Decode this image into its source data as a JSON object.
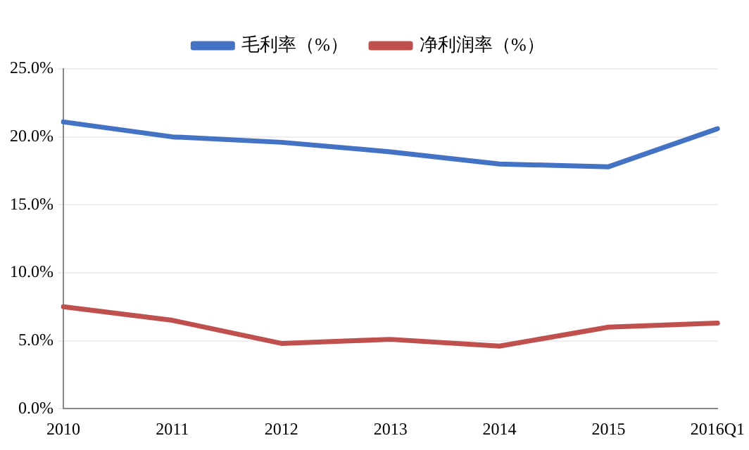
{
  "chart_data": {
    "type": "line",
    "categories": [
      "2010",
      "2011",
      "2012",
      "2013",
      "2014",
      "2015",
      "2016Q1"
    ],
    "series": [
      {
        "name": "毛利率（%）",
        "color": "#4472c4",
        "values": [
          21.1,
          20.0,
          19.6,
          18.9,
          18.0,
          17.8,
          20.6
        ]
      },
      {
        "name": "净利润率（%）",
        "color": "#c0504d",
        "values": [
          7.5,
          6.5,
          4.8,
          5.1,
          4.6,
          6.0,
          6.3
        ]
      }
    ],
    "ylim": [
      0,
      25
    ],
    "yticks": [
      {
        "value": 0,
        "label": "0.0%"
      },
      {
        "value": 5,
        "label": "5.0%"
      },
      {
        "value": 10,
        "label": "10.0%"
      },
      {
        "value": 15,
        "label": "15.0%"
      },
      {
        "value": 20,
        "label": "20.0%"
      },
      {
        "value": 25,
        "label": "25.0%"
      }
    ],
    "grid": "y",
    "legend": "top",
    "marker": "none",
    "line_style": "solid"
  }
}
